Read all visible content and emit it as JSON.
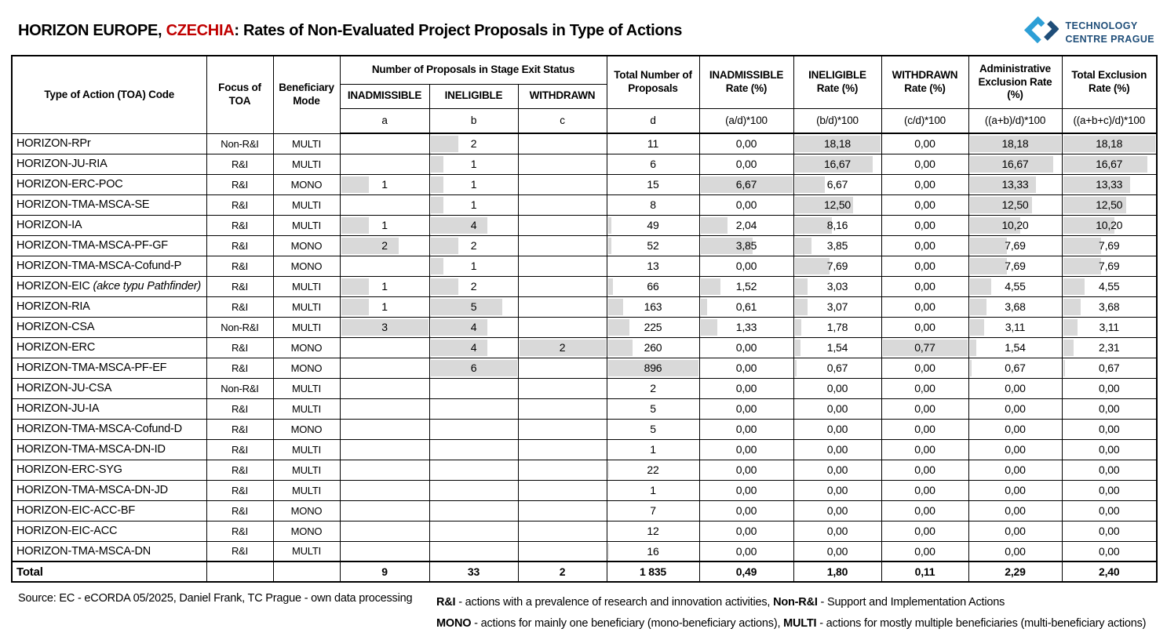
{
  "title": {
    "part1": "HORIZON EUROPE, ",
    "highlight": "CZECHIA",
    "part2": ": Rates of Non-Evaluated Project Proposals in Type of Actions"
  },
  "logo": {
    "line1": "TECHNOLOGY",
    "line2": "CENTRE PRAGUE"
  },
  "colors": {
    "highlight_red": "#c00000",
    "logo_dark_blue": "#1f4e79",
    "logo_light_blue": "#2d9fd6",
    "data_bar_gray": "#d9d9d9"
  },
  "chart_data": {
    "type": "table",
    "title": "HORIZON EUROPE, CZECHIA: Rates of Non-Evaluated Project Proposals in Type of Actions",
    "group_header": "Number of Proposals in Stage Exit Status",
    "headers": {
      "toa": "Type of Action (TOA) Code",
      "focus": "Focus of TOA",
      "mode": "Beneficiary Mode",
      "inadmissible": "INADMISSIBLE",
      "ineligible": "INELIGIBLE",
      "withdrawn": "WITHDRAWN",
      "total": "Total Number of Proposals",
      "inadm_rate": "INADMISSIBLE Rate (%)",
      "inelig_rate": "INELIGIBLE Rate (%)",
      "withdr_rate": "WITHDRAWN Rate (%)",
      "admin_rate": "Administrative Exclusion Rate (%)",
      "total_rate": "Total Exclusion Rate (%)"
    },
    "formulas": [
      "a",
      "b",
      "c",
      "d",
      "(a/d)*100",
      "(b/d)*100",
      "(c/d)*100",
      "((a+b)/d)*100",
      "((a+b+c)/d)*100"
    ],
    "rows": [
      {
        "toa": "HORIZON-RPr",
        "focus": "Non-R&I",
        "mode": "MULTI",
        "cells": [
          "",
          "2",
          "",
          "11",
          "0,00",
          "18,18",
          "0,00",
          "18,18",
          "18,18"
        ]
      },
      {
        "toa": "HORIZON-JU-RIA",
        "focus": "R&I",
        "mode": "MULTI",
        "cells": [
          "",
          "1",
          "",
          "6",
          "0,00",
          "16,67",
          "0,00",
          "16,67",
          "16,67"
        ]
      },
      {
        "toa": "HORIZON-ERC-POC",
        "focus": "R&I",
        "mode": "MONO",
        "cells": [
          "1",
          "1",
          "",
          "15",
          "6,67",
          "6,67",
          "0,00",
          "13,33",
          "13,33"
        ]
      },
      {
        "toa": "HORIZON-TMA-MSCA-SE",
        "focus": "R&I",
        "mode": "MULTI",
        "cells": [
          "",
          "1",
          "",
          "8",
          "0,00",
          "12,50",
          "0,00",
          "12,50",
          "12,50"
        ]
      },
      {
        "toa": "HORIZON-IA",
        "focus": "R&I",
        "mode": "MULTI",
        "cells": [
          "1",
          "4",
          "",
          "49",
          "2,04",
          "8,16",
          "0,00",
          "10,20",
          "10,20"
        ]
      },
      {
        "toa": "HORIZON-TMA-MSCA-PF-GF",
        "focus": "R&I",
        "mode": "MONO",
        "cells": [
          "2",
          "2",
          "",
          "52",
          "3,85",
          "3,85",
          "0,00",
          "7,69",
          "7,69"
        ]
      },
      {
        "toa": "HORIZON-TMA-MSCA-Cofund-P",
        "focus": "R&I",
        "mode": "MONO",
        "cells": [
          "",
          "1",
          "",
          "13",
          "0,00",
          "7,69",
          "0,00",
          "7,69",
          "7,69"
        ]
      },
      {
        "toa": "HORIZON-EIC",
        "toa_italic": " (akce typu Pathfinder)",
        "focus": "R&I",
        "mode": "MULTI",
        "cells": [
          "1",
          "2",
          "",
          "66",
          "1,52",
          "3,03",
          "0,00",
          "4,55",
          "4,55"
        ]
      },
      {
        "toa": "HORIZON-RIA",
        "focus": "R&I",
        "mode": "MULTI",
        "cells": [
          "1",
          "5",
          "",
          "163",
          "0,61",
          "3,07",
          "0,00",
          "3,68",
          "3,68"
        ]
      },
      {
        "toa": "HORIZON-CSA",
        "focus": "Non-R&I",
        "mode": "MULTI",
        "cells": [
          "3",
          "4",
          "",
          "225",
          "1,33",
          "1,78",
          "0,00",
          "3,11",
          "3,11"
        ]
      },
      {
        "toa": "HORIZON-ERC",
        "focus": "R&I",
        "mode": "MONO",
        "cells": [
          "",
          "4",
          "2",
          "260",
          "0,00",
          "1,54",
          "0,77",
          "1,54",
          "2,31"
        ]
      },
      {
        "toa": "HORIZON-TMA-MSCA-PF-EF",
        "focus": "R&I",
        "mode": "MONO",
        "cells": [
          "",
          "6",
          "",
          "896",
          "0,00",
          "0,67",
          "0,00",
          "0,67",
          "0,67"
        ]
      },
      {
        "toa": "HORIZON-JU-CSA",
        "focus": "Non-R&I",
        "mode": "MULTI",
        "cells": [
          "",
          "",
          "",
          "2",
          "0,00",
          "0,00",
          "0,00",
          "0,00",
          "0,00"
        ]
      },
      {
        "toa": "HORIZON-JU-IA",
        "focus": "R&I",
        "mode": "MULTI",
        "cells": [
          "",
          "",
          "",
          "5",
          "0,00",
          "0,00",
          "0,00",
          "0,00",
          "0,00"
        ]
      },
      {
        "toa": "HORIZON-TMA-MSCA-Cofund-D",
        "focus": "R&I",
        "mode": "MONO",
        "cells": [
          "",
          "",
          "",
          "5",
          "0,00",
          "0,00",
          "0,00",
          "0,00",
          "0,00"
        ]
      },
      {
        "toa": "HORIZON-TMA-MSCA-DN-ID",
        "focus": "R&I",
        "mode": "MULTI",
        "cells": [
          "",
          "",
          "",
          "1",
          "0,00",
          "0,00",
          "0,00",
          "0,00",
          "0,00"
        ]
      },
      {
        "toa": "HORIZON-ERC-SYG",
        "focus": "R&I",
        "mode": "MULTI",
        "cells": [
          "",
          "",
          "",
          "22",
          "0,00",
          "0,00",
          "0,00",
          "0,00",
          "0,00"
        ]
      },
      {
        "toa": "HORIZON-TMA-MSCA-DN-JD",
        "focus": "R&I",
        "mode": "MULTI",
        "cells": [
          "",
          "",
          "",
          "1",
          "0,00",
          "0,00",
          "0,00",
          "0,00",
          "0,00"
        ]
      },
      {
        "toa": "HORIZON-EIC-ACC-BF",
        "focus": "R&I",
        "mode": "MONO",
        "cells": [
          "",
          "",
          "",
          "7",
          "0,00",
          "0,00",
          "0,00",
          "0,00",
          "0,00"
        ]
      },
      {
        "toa": "HORIZON-EIC-ACC",
        "focus": "R&I",
        "mode": "MONO",
        "cells": [
          "",
          "",
          "",
          "12",
          "0,00",
          "0,00",
          "0,00",
          "0,00",
          "0,00"
        ]
      },
      {
        "toa": "HORIZON-TMA-MSCA-DN",
        "focus": "R&I",
        "mode": "MULTI",
        "cells": [
          "",
          "",
          "",
          "16",
          "0,00",
          "0,00",
          "0,00",
          "0,00",
          "0,00"
        ]
      }
    ],
    "total_row": {
      "label": "Total",
      "cells": [
        "9",
        "33",
        "2",
        "1 835",
        "0,49",
        "1,80",
        "0,11",
        "2,29",
        "2,40"
      ]
    }
  },
  "footer": {
    "source": "Source: EC - eCORDA 05/2025, Daniel Frank, TC Prague - own data processing",
    "legend1_term1": "R&I",
    "legend1_text1": " - actions with a prevalence of research and innovation activities, ",
    "legend1_term2": "Non-R&I",
    "legend1_text2": " - Support and Implementation Actions",
    "legend2_term1": "MONO",
    "legend2_text1": " - actions for mainly one beneficiary (mono-beneficiary actions), ",
    "legend2_term2": "MULTI",
    "legend2_text2": " - actions for mostly multiple beneficiaries (multi-beneficiary actions)"
  }
}
